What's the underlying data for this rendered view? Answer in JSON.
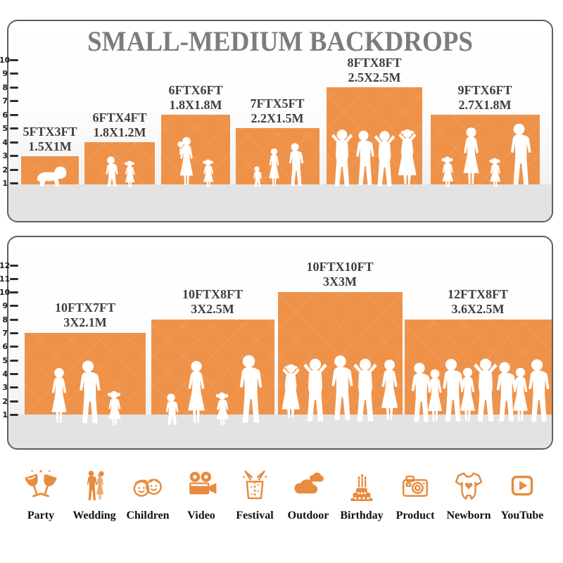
{
  "title": "SMALL-MEDIUM BACKDROPS",
  "panel1": {
    "name": "small-medium backdrops size chart (5ft-9ft)",
    "ruler": [
      "10",
      "9",
      "8",
      "7",
      "6",
      "5",
      "4",
      "3",
      "2",
      "1"
    ],
    "backdrops": [
      {
        "size_ft": "5FTX3FT",
        "size_m": "1.5X1M"
      },
      {
        "size_ft": "6FTX4FT",
        "size_m": "1.8X1.2M"
      },
      {
        "size_ft": "6FTX6FT",
        "size_m": "1.8X1.8M"
      },
      {
        "size_ft": "7FTX5FT",
        "size_m": "2.2X1.5M"
      },
      {
        "size_ft": "8FTX8FT",
        "size_m": "2.5X2.5M"
      },
      {
        "size_ft": "9FTX6FT",
        "size_m": "2.7X1.8M"
      }
    ]
  },
  "panel2": {
    "name": "medium-large backdrops size chart (10ft-12ft)",
    "ruler": [
      "12",
      "11",
      "10",
      "9",
      "8",
      "7",
      "6",
      "5",
      "4",
      "3",
      "2",
      "1"
    ],
    "backdrops": [
      {
        "size_ft": "10FTX7FT",
        "size_m": "3X2.1M"
      },
      {
        "size_ft": "10FTX8FT",
        "size_m": "3X2.5M"
      },
      {
        "size_ft": "10FTX10FT",
        "size_m": "3X3M"
      },
      {
        "size_ft": "12FTX8FT",
        "size_m": "3.6X2.5M"
      }
    ]
  },
  "categories": [
    {
      "label": "Party",
      "icon": "party-glasses-icon"
    },
    {
      "label": "Wedding",
      "icon": "wedding-couple-icon"
    },
    {
      "label": "Children",
      "icon": "children-faces-icon"
    },
    {
      "label": "Video",
      "icon": "video-camera-icon"
    },
    {
      "label": "Festival",
      "icon": "festival-gift-icon"
    },
    {
      "label": "Outdoor",
      "icon": "outdoor-clouds-icon"
    },
    {
      "label": "Birthday",
      "icon": "birthday-cake-icon"
    },
    {
      "label": "Product",
      "icon": "product-camera-icon"
    },
    {
      "label": "Newborn",
      "icon": "newborn-onesie-icon"
    },
    {
      "label": "YouTube",
      "icon": "youtube-play-icon"
    }
  ],
  "colors": {
    "backdrop_orange": "#EF9249",
    "icon_orange": "#E78B3F",
    "title_gray": "#7C7C7C",
    "label_dark": "#3E3E3E",
    "floor_gray": "#E3E3E3"
  }
}
